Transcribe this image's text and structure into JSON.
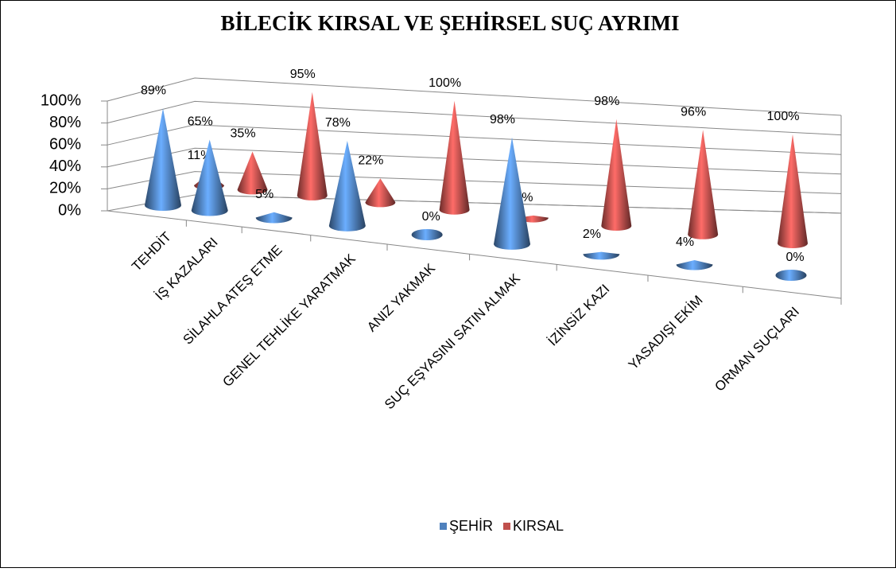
{
  "chart_data": {
    "type": "cone3d",
    "title": "BİLECİK KIRSAL VE ŞEHİRSEL SUÇ AYRIMI",
    "categories": [
      "TEHDİT",
      "İŞ KAZALARI",
      "SİLAHLA ATEŞ ETME",
      "GENEL TEHLİKE YARATMAK",
      "ANIZ YAKMAK",
      "SUÇ EŞYASINI SATIN ALMAK",
      "İZİNSİZ KAZI",
      "YASADIŞI EKİM",
      "ORMAN SUÇLARI"
    ],
    "series": [
      {
        "name": "ŞEHİR",
        "color": "#4f81bd",
        "values": [
          89,
          65,
          5,
          78,
          0,
          98,
          2,
          4,
          0
        ],
        "value_labels": [
          "89%",
          "65%",
          "5%",
          "78%",
          "0%",
          "98%",
          "2%",
          "4%",
          "0%"
        ]
      },
      {
        "name": "KIRSAL",
        "color": "#c0504d",
        "values": [
          11,
          35,
          95,
          22,
          100,
          2,
          98,
          96,
          100
        ],
        "value_labels": [
          "11%",
          "35%",
          "95%",
          "22%",
          "100%",
          "2%",
          "98%",
          "96%",
          "100%"
        ]
      }
    ],
    "ylim": [
      0,
      100
    ],
    "yticks": [
      {
        "value": 0,
        "label": "0%"
      },
      {
        "value": 20,
        "label": "20%"
      },
      {
        "value": 40,
        "label": "40%"
      },
      {
        "value": 60,
        "label": "60%"
      },
      {
        "value": 80,
        "label": "80%"
      },
      {
        "value": 100,
        "label": "100%"
      }
    ],
    "grid": true,
    "legend": "bottom"
  }
}
